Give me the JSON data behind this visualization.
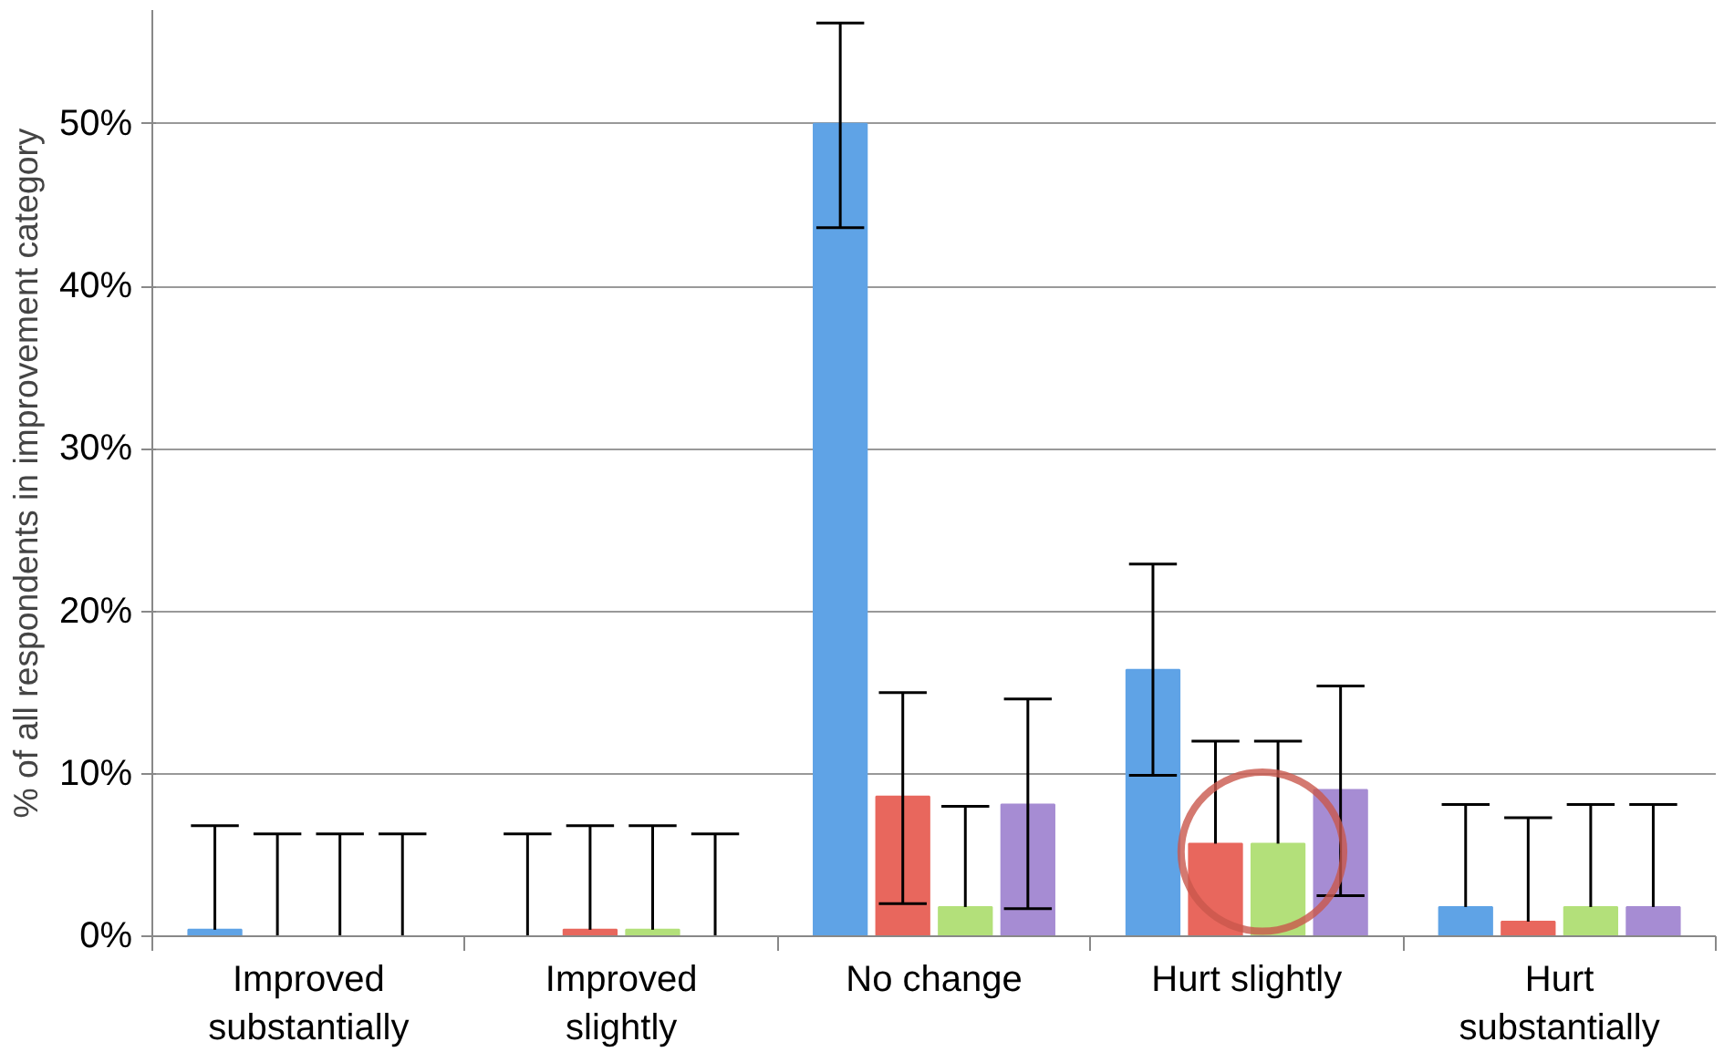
{
  "chart_data": {
    "type": "bar",
    "ylabel": "% of all respondents in improvement category",
    "categories": [
      "Improved substantially",
      "Improved slightly",
      "No change",
      "Hurt slightly",
      "Hurt substantially"
    ],
    "series": [
      {
        "color": "#5fa3e6",
        "values": [
          0.4,
          0,
          50,
          16.4,
          1.8
        ],
        "errors": [
          [
            0.4,
            6.8
          ],
          [
            0,
            6.3
          ],
          [
            43.6,
            56.2
          ],
          [
            9.9,
            22.9
          ],
          [
            1.8,
            8.1
          ]
        ]
      },
      {
        "color": "#e8675d",
        "values": [
          0,
          0.4,
          8.6,
          5.7,
          0.9
        ],
        "errors": [
          [
            0,
            6.3
          ],
          [
            0.4,
            6.8
          ],
          [
            2.0,
            15.0
          ],
          [
            5.7,
            12.0
          ],
          [
            0.9,
            7.3
          ]
        ]
      },
      {
        "color": "#b3e07a",
        "values": [
          0,
          0.4,
          1.8,
          5.7,
          1.8
        ],
        "errors": [
          [
            0,
            6.3
          ],
          [
            0.4,
            6.8
          ],
          [
            1.8,
            8.0
          ],
          [
            5.7,
            12.0
          ],
          [
            1.8,
            8.1
          ]
        ]
      },
      {
        "color": "#a68cd3",
        "values": [
          0,
          0,
          8.1,
          9.0,
          1.8
        ],
        "errors": [
          [
            0,
            6.3
          ],
          [
            0,
            6.3
          ],
          [
            1.7,
            14.6
          ],
          [
            2.5,
            15.4
          ],
          [
            1.8,
            8.1
          ]
        ]
      }
    ],
    "ylim": [
      0,
      57
    ],
    "yticks": [
      {
        "value": 0,
        "label": "0%"
      },
      {
        "value": 10,
        "label": "10%"
      },
      {
        "value": 20,
        "label": "20%"
      },
      {
        "value": 30,
        "label": "30%"
      },
      {
        "value": 40,
        "label": "40%"
      },
      {
        "value": 50,
        "label": "50%"
      }
    ],
    "grid": "y"
  }
}
